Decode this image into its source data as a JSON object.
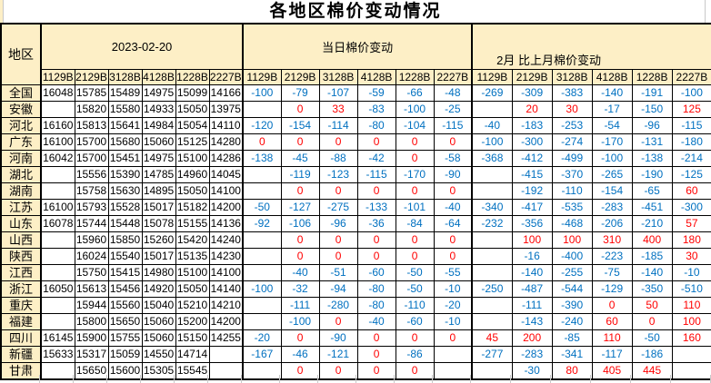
{
  "title": "各地区棉价变动情况",
  "colors": {
    "header_bg": "#FDEFC6",
    "negative": "#0070C0",
    "positive_or_zero": "#FF0000",
    "border": "#000000"
  },
  "table": {
    "region_header": "地区",
    "groups": [
      {
        "label": "2023-02-20"
      },
      {
        "label": "当日棉价变动"
      },
      {
        "label": "2月 比上月棉价变动"
      }
    ],
    "grades": [
      "1129B",
      "2129B",
      "3128B",
      "4128B",
      "1228B",
      "2227B"
    ],
    "rows": [
      {
        "region": "全国",
        "date_prices": [
          16048,
          15785,
          15489,
          14975,
          15099,
          14166
        ],
        "daily_change": [
          -100,
          -79,
          -107,
          -59,
          -66,
          -48
        ],
        "monthly_change": [
          -269,
          -309,
          -383,
          -140,
          -191,
          -100
        ]
      },
      {
        "region": "安徽",
        "date_prices": [
          null,
          15820,
          15580,
          14933,
          15050,
          13975
        ],
        "daily_change": [
          null,
          0,
          33,
          -83,
          -100,
          -25
        ],
        "monthly_change": [
          null,
          20,
          30,
          -17,
          -150,
          125
        ]
      },
      {
        "region": "河北",
        "date_prices": [
          16160,
          15813,
          15641,
          14984,
          15054,
          14110
        ],
        "daily_change": [
          -120,
          -154,
          -114,
          -80,
          -104,
          -115
        ],
        "monthly_change": [
          -40,
          -183,
          -253,
          -54,
          -96,
          -115
        ]
      },
      {
        "region": "广东",
        "date_prices": [
          16100,
          15700,
          15680,
          15060,
          15125,
          14280
        ],
        "daily_change": [
          0,
          0,
          0,
          0,
          0,
          0
        ],
        "monthly_change": [
          -100,
          -300,
          -274,
          -170,
          -131,
          -180
        ]
      },
      {
        "region": "河南",
        "date_prices": [
          16042,
          15700,
          15451,
          14975,
          15100,
          14286
        ],
        "daily_change": [
          -138,
          -45,
          -88,
          -42,
          0,
          -58
        ],
        "monthly_change": [
          -368,
          -412,
          -499,
          -100,
          -138,
          -214
        ]
      },
      {
        "region": "湖北",
        "date_prices": [
          null,
          15556,
          15390,
          14785,
          14960,
          14045
        ],
        "daily_change": [
          null,
          -119,
          -123,
          -115,
          -170,
          -90
        ],
        "monthly_change": [
          null,
          -415,
          -370,
          -265,
          -190,
          -125
        ]
      },
      {
        "region": "湖南",
        "date_prices": [
          null,
          15758,
          15630,
          14895,
          15050,
          14100
        ],
        "daily_change": [
          null,
          0,
          0,
          0,
          0,
          0
        ],
        "monthly_change": [
          null,
          -192,
          -110,
          -154,
          -65,
          60
        ]
      },
      {
        "region": "江苏",
        "date_prices": [
          16100,
          15793,
          15528,
          15017,
          15182,
          14200
        ],
        "daily_change": [
          -50,
          -127,
          -275,
          -133,
          -101,
          -40
        ],
        "monthly_change": [
          -340,
          -417,
          -535,
          -283,
          -451,
          -300
        ]
      },
      {
        "region": "山东",
        "date_prices": [
          16078,
          15744,
          15448,
          15078,
          15155,
          14136
        ],
        "daily_change": [
          -92,
          -106,
          -96,
          -36,
          -84,
          -64
        ],
        "monthly_change": [
          -232,
          -356,
          -468,
          -206,
          -210,
          57
        ]
      },
      {
        "region": "山西",
        "date_prices": [
          null,
          15960,
          15850,
          15260,
          15420,
          14240
        ],
        "daily_change": [
          null,
          0,
          0,
          0,
          0,
          0
        ],
        "monthly_change": [
          null,
          100,
          100,
          310,
          400,
          180
        ]
      },
      {
        "region": "陕西",
        "date_prices": [
          null,
          16024,
          15540,
          15017,
          15135,
          14230
        ],
        "daily_change": [
          null,
          0,
          0,
          0,
          0,
          0
        ],
        "monthly_change": [
          null,
          -16,
          -400,
          -223,
          -185,
          30
        ]
      },
      {
        "region": "江西",
        "date_prices": [
          null,
          15750,
          15415,
          14980,
          15100,
          14100
        ],
        "daily_change": [
          null,
          -40,
          -51,
          -60,
          -50,
          -55
        ],
        "monthly_change": [
          null,
          -140,
          -255,
          -75,
          -140,
          -10
        ]
      },
      {
        "region": "浙江",
        "date_prices": [
          16050,
          15613,
          15456,
          14920,
          15050,
          14140
        ],
        "daily_change": [
          -100,
          -32,
          -94,
          -80,
          -50,
          -10
        ],
        "monthly_change": [
          -250,
          -487,
          -544,
          -129,
          -350,
          -510
        ]
      },
      {
        "region": "重庆",
        "date_prices": [
          null,
          15944,
          15560,
          15040,
          15210,
          14210
        ],
        "daily_change": [
          null,
          -111,
          -280,
          -80,
          -110,
          -20
        ],
        "monthly_change": [
          null,
          -111,
          -390,
          0,
          50,
          110
        ]
      },
      {
        "region": "福建",
        "date_prices": [
          null,
          15800,
          15650,
          15060,
          15200,
          14200
        ],
        "daily_change": [
          null,
          -100,
          0,
          -40,
          -60,
          -10
        ],
        "monthly_change": [
          null,
          -143,
          -240,
          60,
          0,
          100
        ]
      },
      {
        "region": "四川",
        "date_prices": [
          16145,
          15900,
          15755,
          15060,
          15150,
          14255
        ],
        "daily_change": [
          -20,
          0,
          -90,
          0,
          0,
          0
        ],
        "monthly_change": [
          45,
          200,
          -85,
          110,
          -50,
          160
        ]
      },
      {
        "region": "新疆",
        "date_prices": [
          15633,
          15317,
          15059,
          14550,
          14714,
          null
        ],
        "daily_change": [
          -167,
          -46,
          -121,
          0,
          -86,
          null
        ],
        "monthly_change": [
          -277,
          -283,
          -341,
          -117,
          -186,
          null
        ]
      },
      {
        "region": "甘肃",
        "date_prices": [
          null,
          15650,
          15600,
          15305,
          15545,
          null
        ],
        "daily_change": [
          null,
          0,
          0,
          0,
          0,
          null
        ],
        "monthly_change": [
          null,
          -30,
          80,
          405,
          445,
          null
        ]
      }
    ]
  }
}
